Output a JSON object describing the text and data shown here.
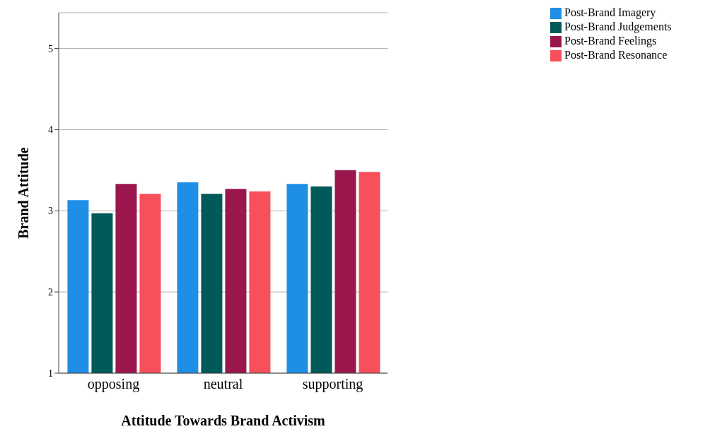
{
  "chart_data": {
    "type": "bar",
    "xlabel": "Attitude Towards Brand Activism",
    "ylabel": "Brand Attitude",
    "categories": [
      "opposing",
      "neutral",
      "supporting"
    ],
    "series": [
      {
        "name": "Post-Brand Imagery",
        "color": "#1f8fe5",
        "values": [
          3.13,
          3.35,
          3.33
        ]
      },
      {
        "name": "Post-Brand Judgements",
        "color": "#005a5a",
        "values": [
          2.97,
          3.21,
          3.3
        ]
      },
      {
        "name": "Post-Brand Feelings",
        "color": "#99174d",
        "values": [
          3.33,
          3.27,
          3.5
        ]
      },
      {
        "name": "Post-Brand Resonance",
        "color": "#f8505a",
        "values": [
          3.21,
          3.24,
          3.48
        ]
      }
    ],
    "ylim": [
      1,
      5.44
    ],
    "yticks": [
      1,
      2,
      3,
      4,
      5
    ],
    "grid": "y",
    "legend": "top right"
  }
}
